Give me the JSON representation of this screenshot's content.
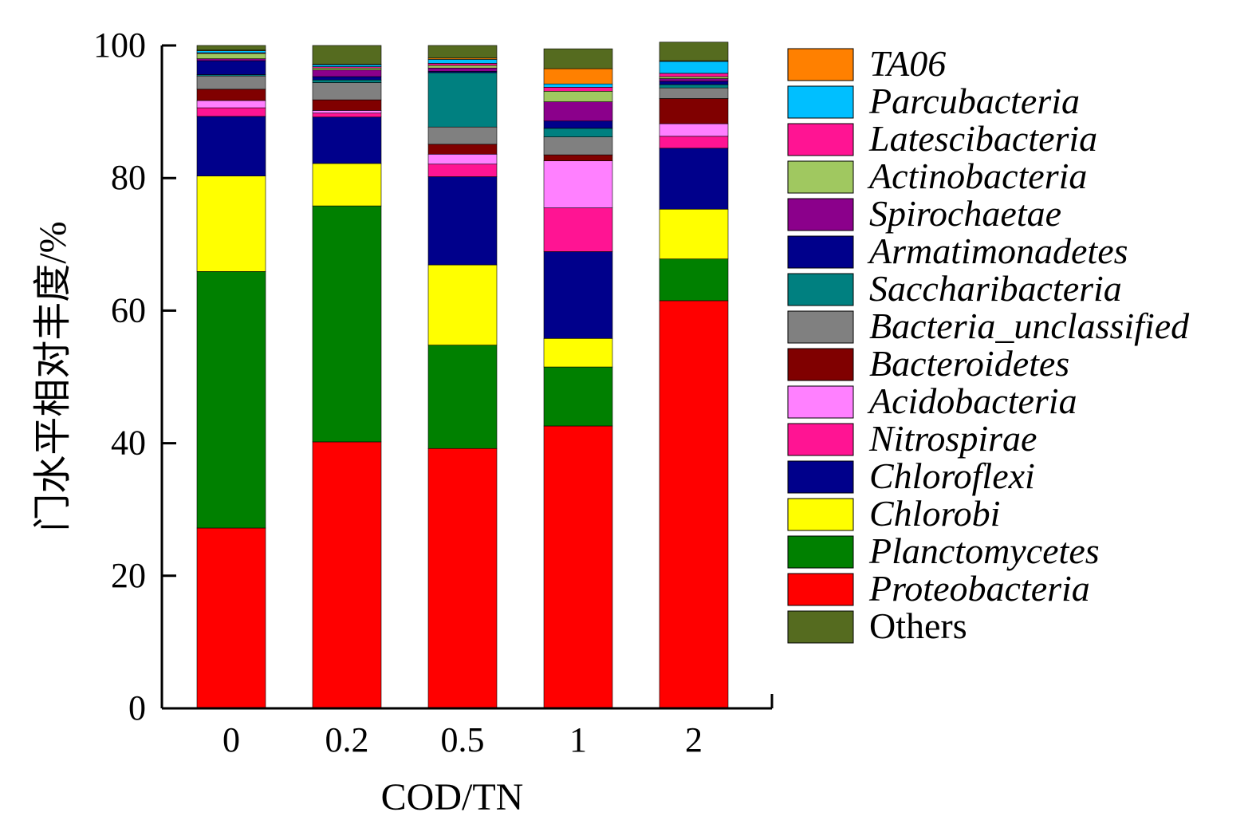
{
  "chart_data": {
    "type": "bar",
    "stacked": true,
    "xlabel": "COD/TN",
    "ylabel": "门水平相对丰度/%",
    "ylim": [
      0,
      100
    ],
    "yticks": [
      "0",
      "20",
      "40",
      "60",
      "80",
      "100"
    ],
    "categories": [
      "0",
      "0.2",
      "0.5",
      "1",
      "2"
    ],
    "series": [
      {
        "name": "Proteobacteria",
        "color": "#ff0000",
        "italic": true,
        "values": [
          27.2,
          40.2,
          39.2,
          42.6,
          61.5
        ]
      },
      {
        "name": "Planctomycetes",
        "color": "#008000",
        "italic": true,
        "values": [
          38.7,
          35.6,
          15.6,
          8.9,
          6.3
        ]
      },
      {
        "name": "Chlorobi",
        "color": "#ffff00",
        "italic": true,
        "values": [
          14.4,
          6.4,
          12.1,
          4.3,
          7.5
        ]
      },
      {
        "name": "Chloroflexi",
        "color": "#00008b",
        "italic": true,
        "values": [
          9.0,
          7.0,
          13.3,
          13.1,
          9.2
        ]
      },
      {
        "name": "Nitrospirae",
        "color": "#ff1493",
        "italic": true,
        "values": [
          1.3,
          0.6,
          1.9,
          6.6,
          1.8
        ]
      },
      {
        "name": "Acidobacteria",
        "color": "#ff80ff",
        "italic": true,
        "values": [
          1.1,
          0.4,
          1.5,
          7.1,
          1.9
        ]
      },
      {
        "name": "Bacteroidetes",
        "color": "#800000",
        "italic": true,
        "values": [
          1.7,
          1.6,
          1.5,
          0.9,
          3.8
        ]
      },
      {
        "name": "Bacteria_unclassified",
        "color": "#808080",
        "italic": true,
        "values": [
          2.0,
          2.6,
          2.6,
          2.7,
          1.6
        ]
      },
      {
        "name": "Saccharibacteria",
        "color": "#008080",
        "italic": true,
        "values": [
          0.2,
          0.4,
          8.2,
          1.3,
          0.5
        ]
      },
      {
        "name": "Armatimonadetes",
        "color": "#00008b",
        "italic": true,
        "values": [
          2.1,
          0.5,
          0.2,
          1.1,
          0.5
        ]
      },
      {
        "name": "Spirochaetae",
        "color": "#8b008b",
        "italic": true,
        "values": [
          0.3,
          1.0,
          0.5,
          2.9,
          0.4
        ]
      },
      {
        "name": "Actinobacteria",
        "color": "#a0c860",
        "italic": true,
        "values": [
          0.8,
          0.3,
          0.4,
          1.6,
          0.3
        ]
      },
      {
        "name": "Latescibacteria",
        "color": "#ff1493",
        "italic": true,
        "values": [
          0.1,
          0.2,
          0.3,
          0.6,
          0.5
        ]
      },
      {
        "name": "Parcubacteria",
        "color": "#00bfff",
        "italic": true,
        "values": [
          0.3,
          0.3,
          0.6,
          0.5,
          1.8
        ]
      },
      {
        "name": "TA06",
        "color": "#ff8000",
        "italic": true,
        "values": [
          0.1,
          0.1,
          0.2,
          2.3,
          0.1
        ]
      },
      {
        "name": "Others",
        "color": "#556b1f",
        "italic": false,
        "values": [
          0.7,
          2.8,
          1.9,
          3.0,
          2.8
        ]
      }
    ],
    "legend_order": [
      "TA06",
      "Parcubacteria",
      "Latescibacteria",
      "Actinobacteria",
      "Spirochaetae",
      "Armatimonadetes",
      "Saccharibacteria",
      "Bacteria_unclassified",
      "Bacteroidetes",
      "Acidobacteria",
      "Nitrospirae",
      "Chloroflexi",
      "Chlorobi",
      "Planctomycetes",
      "Proteobacteria",
      "Others"
    ],
    "legend_position": "right",
    "grid": false
  }
}
